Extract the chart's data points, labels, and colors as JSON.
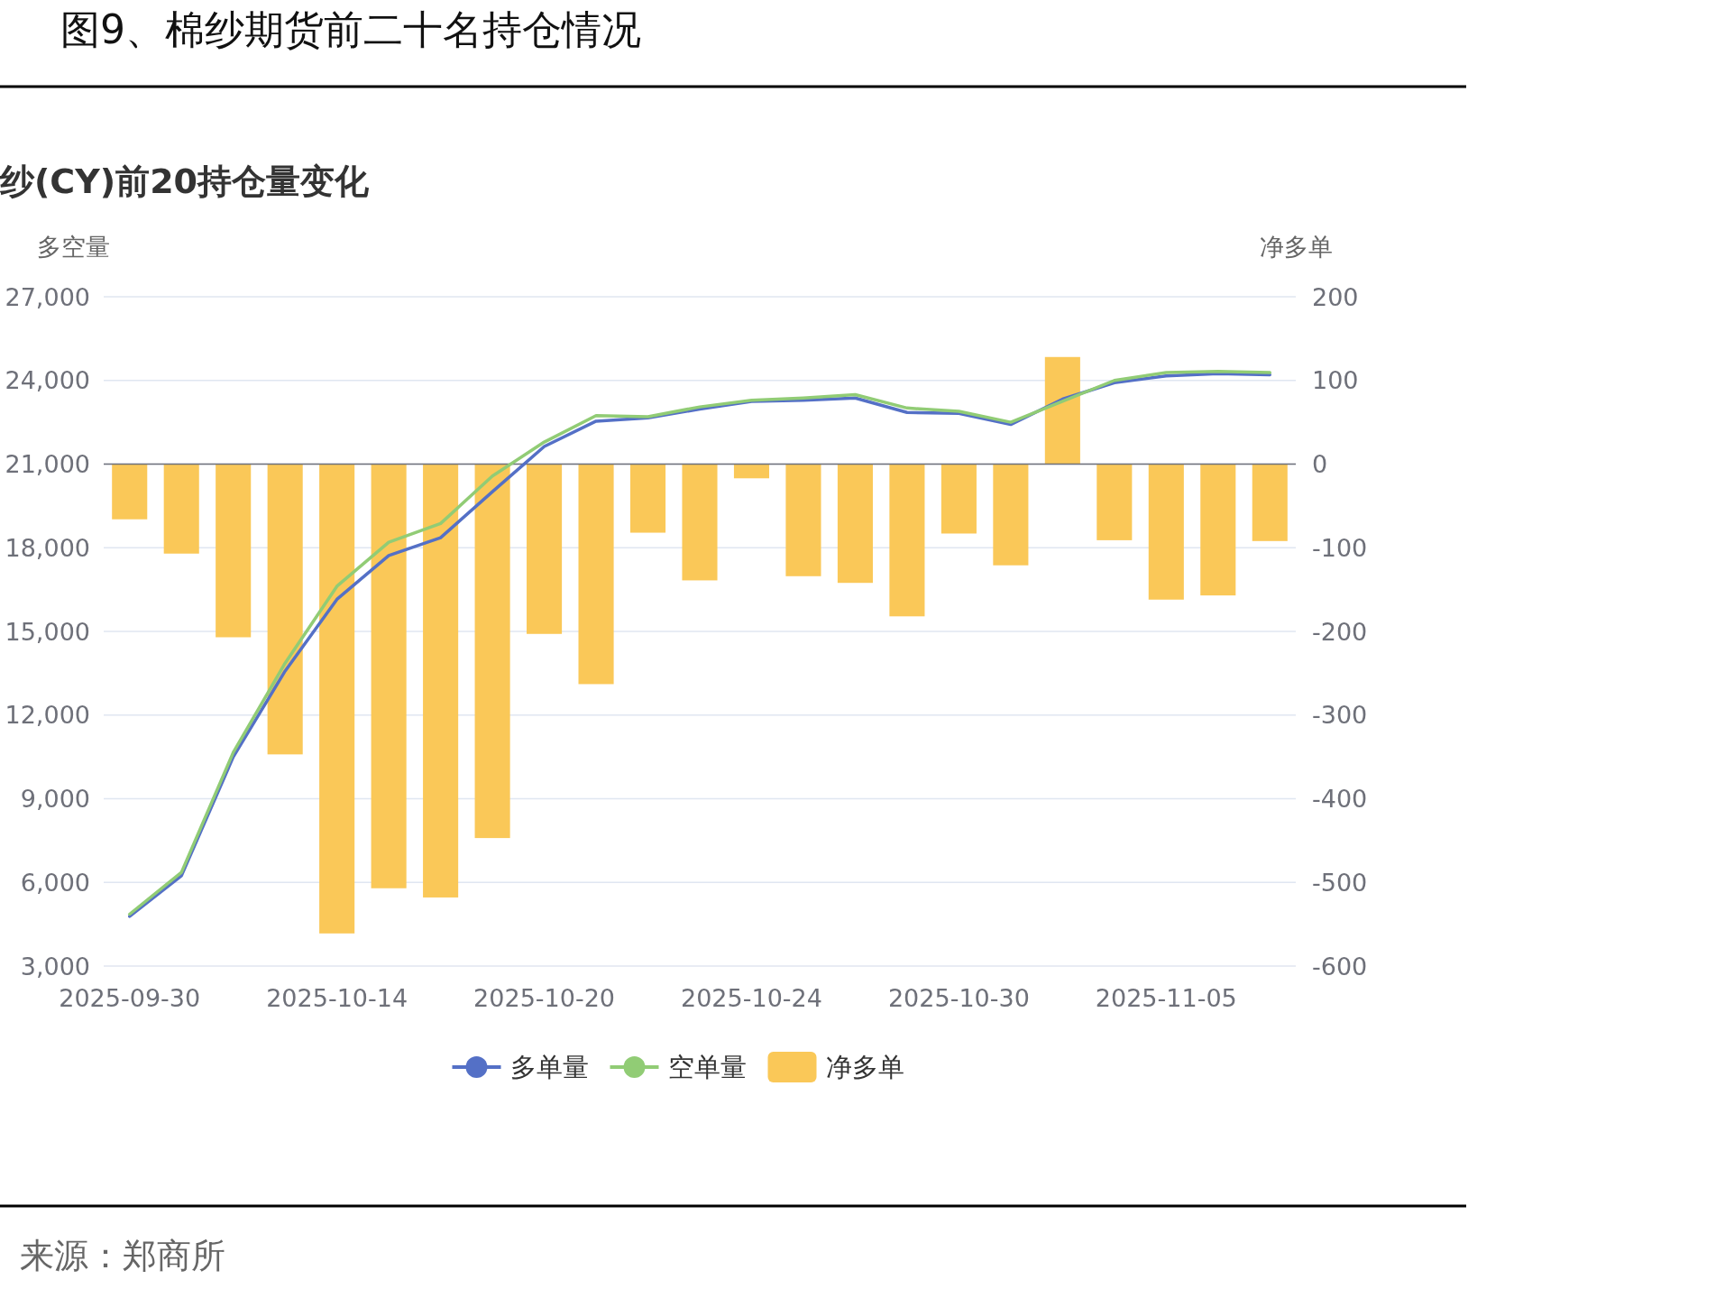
{
  "chart_data": {
    "type": "line",
    "title": "图9、棉纱期货前二十名持仓情况",
    "subtitle": "纱(CY)前20持仓量变化",
    "ylabel": "多空量",
    "y2label": "净多单",
    "annotations": [
      "来源：郑商所"
    ],
    "categories": [
      "2025-09-30",
      null,
      null,
      null,
      "2025-10-14",
      null,
      null,
      null,
      "2025-10-20",
      null,
      null,
      null,
      "2025-10-24",
      null,
      null,
      null,
      "2025-10-30",
      null,
      null,
      null,
      "2025-11-05",
      null,
      null
    ],
    "series": [
      {
        "name": "多单量",
        "color": "#5470c6",
        "values": [
          4780,
          6240,
          10500,
          13580,
          16150,
          17720,
          18360,
          20010,
          21630,
          22540,
          22660,
          22970,
          23250,
          23290,
          23370,
          22850,
          22820,
          22420,
          23330,
          23920,
          24160,
          24240,
          24200
        ]
      },
      {
        "name": "空单量",
        "color": "#91cc75",
        "values": [
          4860,
          6360,
          10660,
          13860,
          16620,
          18200,
          18870,
          20570,
          21790,
          22740,
          22700,
          23050,
          23290,
          23370,
          23490,
          23010,
          22890,
          22500,
          23250,
          24000,
          24280,
          24320,
          24280
        ]
      },
      {
        "name": "净多单",
        "type": "bar",
        "axis": "y2",
        "color": "#fac858",
        "values": [
          -66,
          -107,
          -207,
          -347,
          -561,
          -507,
          -518,
          -447,
          -203,
          -263,
          -82,
          -139,
          -17,
          -134,
          -142,
          -182,
          -83,
          -121,
          128,
          -91,
          -162,
          -157,
          -92
        ]
      }
    ],
    "ylim": [
      3000,
      27000
    ],
    "yticks": [
      {
        "value": 27000,
        "label": "27,000"
      },
      {
        "value": 24000,
        "label": "24,000"
      },
      {
        "value": 21000,
        "label": "21,000"
      },
      {
        "value": 18000,
        "label": "18,000"
      },
      {
        "value": 15000,
        "label": "15,000"
      },
      {
        "value": 12000,
        "label": "12,000"
      },
      {
        "value": 9000,
        "label": "9,000"
      },
      {
        "value": 6000,
        "label": "6,000"
      },
      {
        "value": 3000,
        "label": "3,000"
      }
    ],
    "y2lim": [
      -600,
      200
    ],
    "y2ticks": [
      200,
      100,
      0,
      -100,
      -200,
      -300,
      -400,
      -500,
      -600
    ],
    "grid": "y",
    "legend": "bottom"
  }
}
